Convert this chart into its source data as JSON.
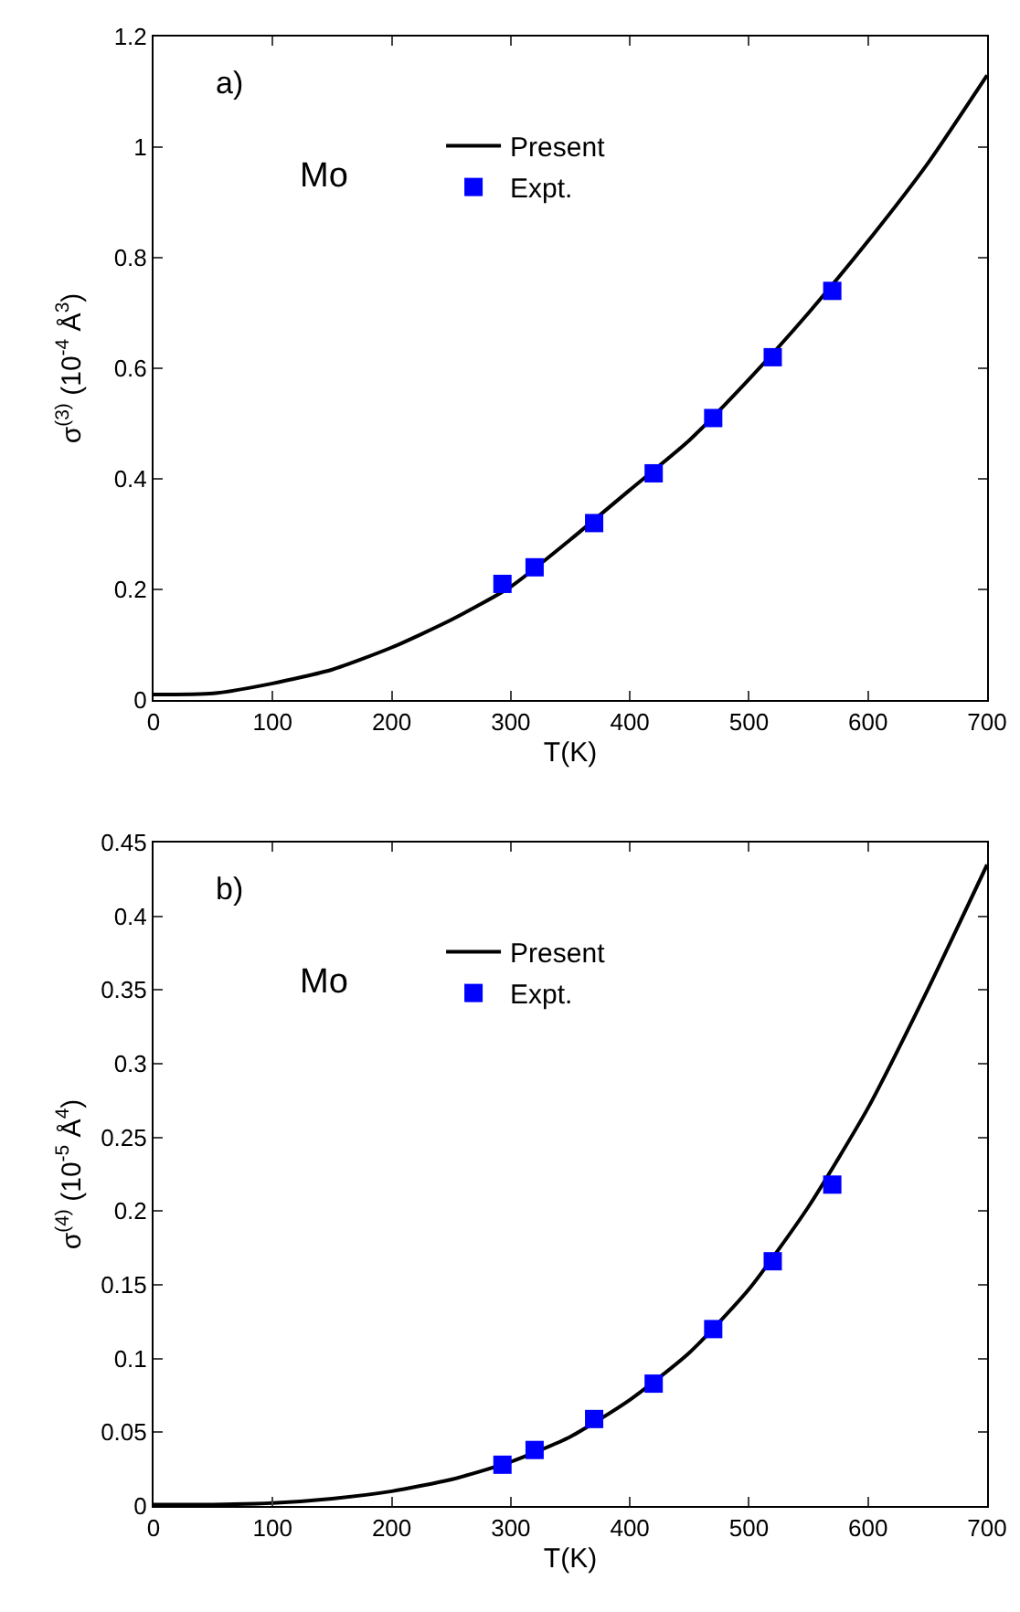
{
  "chart_data": [
    {
      "type": "line",
      "xlabel": "T(K)",
      "ylabel": "σ$^{(3)}$ (10$^{-4}$ Å$^{3}$)",
      "annotations": [
        "a)",
        "Mo"
      ],
      "legend": "top",
      "grid": false,
      "xlim": [
        0,
        700
      ],
      "xticks": [
        0,
        100,
        200,
        300,
        400,
        500,
        600,
        700
      ],
      "ylim": [
        0,
        1.2
      ],
      "yticks": [
        0,
        0.2,
        0.4,
        0.6,
        0.8,
        1,
        1.2
      ],
      "series": [
        {
          "name": "Present",
          "color": "#000000",
          "marker": "none",
          "line_style": "solid",
          "x": [
            0,
            50,
            100,
            150,
            200,
            250,
            300,
            350,
            400,
            450,
            500,
            550,
            600,
            650,
            700
          ],
          "values": [
            0.01,
            0.012,
            0.03,
            0.055,
            0.095,
            0.145,
            0.205,
            0.29,
            0.38,
            0.47,
            0.58,
            0.7,
            0.83,
            0.97,
            1.13
          ]
        },
        {
          "name": "Expt.",
          "type": "scatter",
          "color": "#0000ff",
          "marker": "square",
          "x": [
            293,
            320,
            370,
            420,
            470,
            520,
            570
          ],
          "values": [
            0.21,
            0.24,
            0.32,
            0.41,
            0.51,
            0.62,
            0.74
          ]
        }
      ]
    },
    {
      "type": "line",
      "xlabel": "T(K)",
      "ylabel": "σ$^{(4)}$ (10$^{-5}$ Å$^{4}$)",
      "annotations": [
        "b)",
        "Mo"
      ],
      "legend": "top",
      "grid": false,
      "xlim": [
        0,
        700
      ],
      "xticks": [
        0,
        100,
        200,
        300,
        400,
        500,
        600,
        700
      ],
      "ylim": [
        0,
        0.45
      ],
      "yticks": [
        0,
        0.05,
        0.1,
        0.15,
        0.2,
        0.25,
        0.3,
        0.35,
        0.4,
        0.45
      ],
      "series": [
        {
          "name": "Present",
          "color": "#000000",
          "marker": "none",
          "line_style": "solid",
          "x": [
            0,
            50,
            100,
            150,
            200,
            250,
            300,
            350,
            400,
            450,
            500,
            550,
            600,
            650,
            700
          ],
          "values": [
            0.001,
            0.001,
            0.002,
            0.005,
            0.01,
            0.018,
            0.03,
            0.047,
            0.072,
            0.104,
            0.147,
            0.203,
            0.27,
            0.35,
            0.435
          ]
        },
        {
          "name": "Expt.",
          "type": "scatter",
          "color": "#0000ff",
          "marker": "square",
          "x": [
            293,
            320,
            370,
            420,
            470,
            520,
            570
          ],
          "values": [
            0.028,
            0.038,
            0.059,
            0.083,
            0.12,
            0.166,
            0.218
          ]
        }
      ]
    }
  ]
}
